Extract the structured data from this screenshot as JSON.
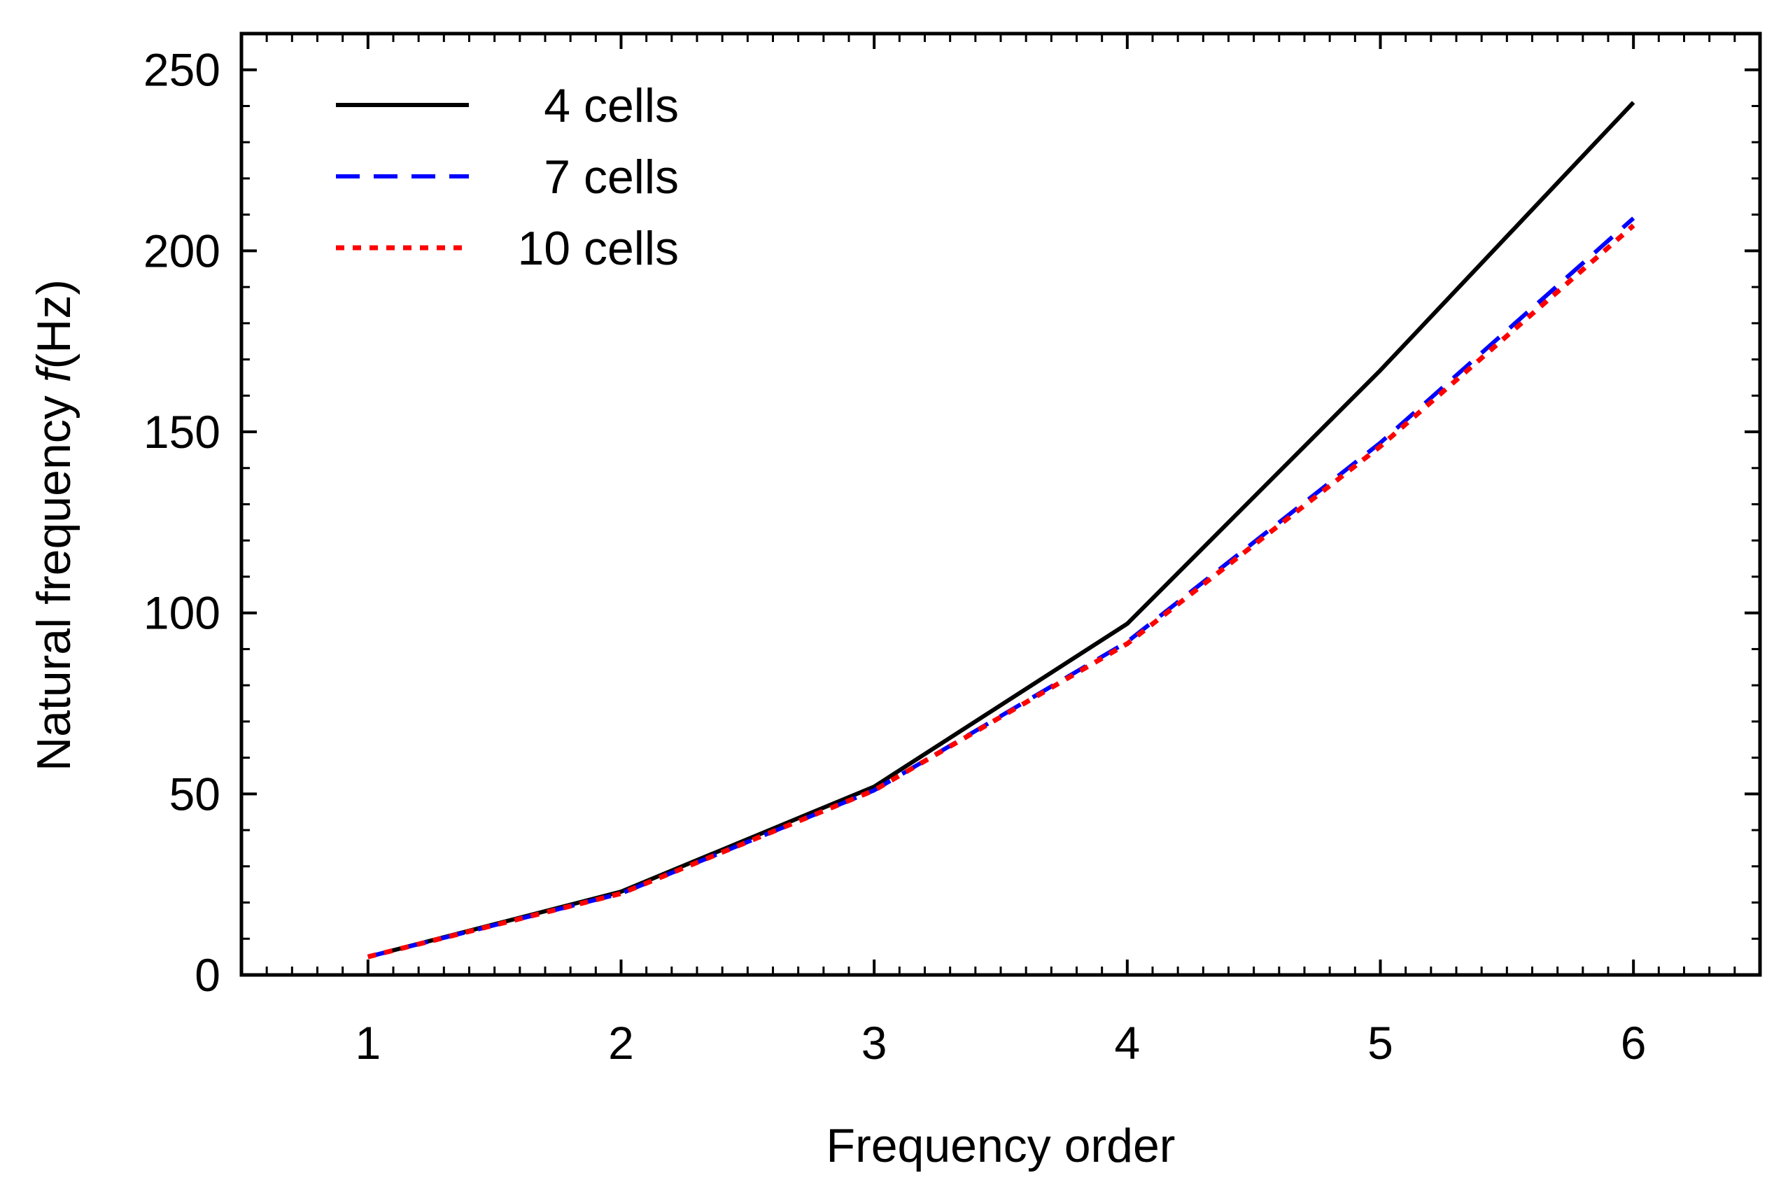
{
  "chart_data": {
    "type": "line",
    "title": "",
    "xlabel": "Frequency order",
    "ylabel": {
      "prefix": "Natural  frequency  ",
      "symbol": "f",
      "unit": "(Hz)"
    },
    "x": [
      1,
      2,
      3,
      4,
      5,
      6
    ],
    "xlim": [
      0.5,
      6.5
    ],
    "ylim": [
      0,
      260
    ],
    "xticks": [
      1,
      2,
      3,
      4,
      5,
      6
    ],
    "yticks": [
      0,
      50,
      100,
      150,
      200,
      250
    ],
    "grid": false,
    "legend_position": "top-left",
    "series": [
      {
        "name": "4 cells",
        "color": "#000000",
        "style": "solid",
        "values": [
          5,
          23,
          52,
          97,
          167,
          241
        ]
      },
      {
        "name": "7 cells",
        "color": "#0000ff",
        "style": "dashed",
        "values": [
          5,
          22.5,
          51,
          92,
          147,
          209
        ]
      },
      {
        "name": "10 cells",
        "color": "#ff0000",
        "style": "dotted",
        "values": [
          5,
          22.5,
          51,
          91.5,
          146,
          207
        ]
      }
    ]
  }
}
